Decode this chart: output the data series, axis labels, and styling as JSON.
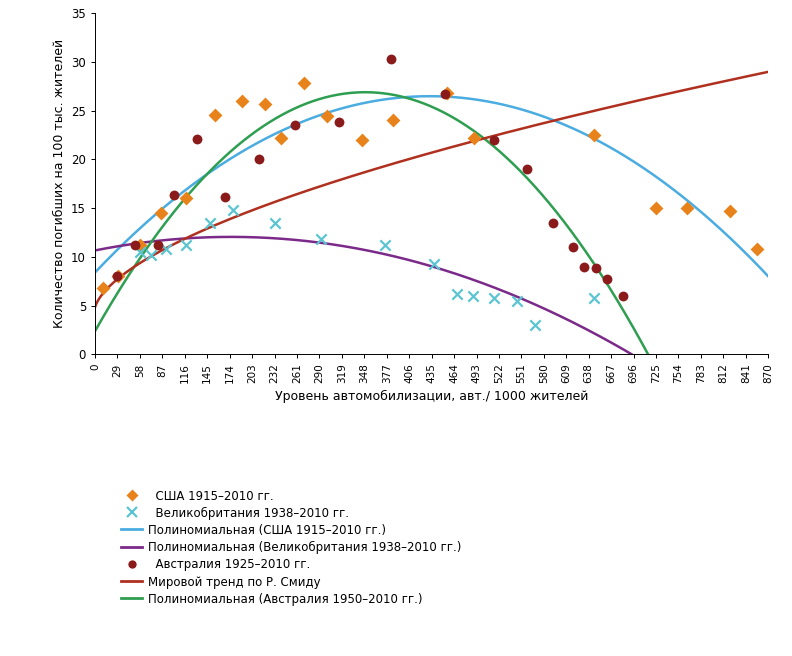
{
  "xlabel": "Уровень автомобилизации, авт./ 1000 жителей",
  "ylabel": "Количество погибших на 100 тыс. жителей",
  "xlim": [
    0,
    870
  ],
  "ylim": [
    0,
    35
  ],
  "xticks": [
    0,
    29,
    58,
    87,
    116,
    145,
    174,
    203,
    232,
    261,
    290,
    319,
    348,
    377,
    406,
    435,
    464,
    493,
    522,
    551,
    580,
    609,
    638,
    667,
    696,
    725,
    754,
    783,
    812,
    841,
    870
  ],
  "yticks": [
    0,
    5,
    10,
    15,
    20,
    25,
    30,
    35
  ],
  "usa_x": [
    10,
    30,
    58,
    85,
    118,
    155,
    190,
    220,
    240,
    270,
    300,
    345,
    385,
    455,
    490,
    645,
    725,
    765,
    820,
    855
  ],
  "usa_y": [
    6.8,
    8.0,
    11.2,
    14.5,
    16.0,
    24.5,
    26.0,
    25.7,
    22.2,
    27.8,
    24.4,
    22.0,
    24.0,
    26.8,
    22.2,
    22.5,
    15.0,
    15.0,
    14.7,
    10.8
  ],
  "uk_x": [
    58,
    72,
    92,
    118,
    148,
    178,
    232,
    292,
    375,
    438,
    468,
    488,
    515,
    545,
    568,
    645
  ],
  "uk_y": [
    10.5,
    10.2,
    10.8,
    11.2,
    13.5,
    14.8,
    13.5,
    11.8,
    11.2,
    9.3,
    6.2,
    6.0,
    5.8,
    5.5,
    3.0,
    5.8
  ],
  "aus_x": [
    28,
    52,
    82,
    102,
    132,
    168,
    212,
    258,
    315,
    382,
    452,
    515,
    558,
    592,
    618,
    632,
    648,
    662,
    682
  ],
  "aus_y": [
    8.0,
    11.2,
    11.2,
    16.3,
    22.1,
    16.1,
    20.0,
    23.5,
    23.8,
    30.3,
    26.7,
    22.0,
    19.0,
    13.5,
    11.0,
    9.0,
    8.8,
    7.7,
    6.0
  ],
  "color_usa": "#E8821A",
  "color_uk": "#5BC4D0",
  "color_aus": "#8B1A1A",
  "color_usa_poly": "#4AACE0",
  "color_uk_poly": "#7B2A8A",
  "color_aus_poly": "#2E9E50",
  "color_world": "#B03020",
  "legend_labels": [
    "    ◆  США 1915–2010 гг.",
    "    ×  Великобритания 1938–2010 гг.",
    "Полиномиальная (США 1915–2010 гг.)",
    "Полиномиальная (Великобритания 1938–2010 гг.)",
    "    ●  Австралия 1925–2010 гг.",
    "Мировой тренд по Р. Смиду",
    "Полиномиальная (Австралия 1950–2010 гг.)"
  ]
}
